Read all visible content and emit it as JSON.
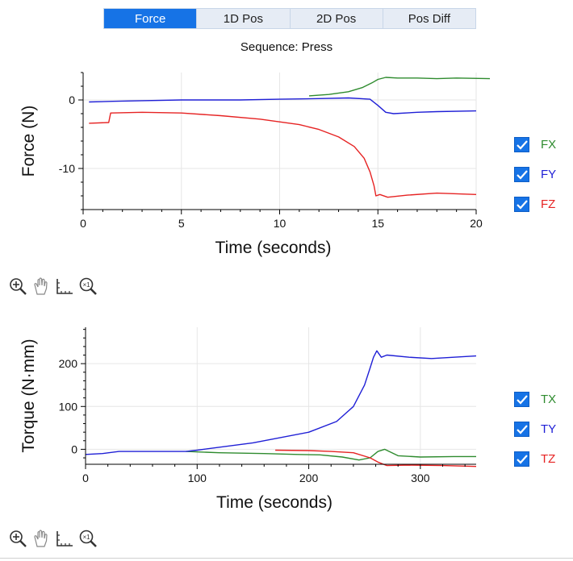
{
  "tabs": [
    {
      "label": "Force",
      "active": true
    },
    {
      "label": "1D Pos",
      "active": false
    },
    {
      "label": "2D Pos",
      "active": false
    },
    {
      "label": "Pos Diff",
      "active": false
    }
  ],
  "sequence": {
    "label": "Sequence: Press"
  },
  "colors": {
    "accent": "#1673e6",
    "x": "#2e8b2e",
    "y": "#1f1fd6",
    "z": "#e62323"
  },
  "toolbar_icons": [
    "zoom-in-icon",
    "pan-hand-icon",
    "ruler-icon",
    "zoom-reset-icon"
  ],
  "chart_data": [
    {
      "type": "line",
      "title": "",
      "xlabel": "Time (seconds)",
      "ylabel": "Force (N)",
      "xlim": [
        0,
        20
      ],
      "ylim": [
        -16,
        4
      ],
      "xticks": [
        0,
        5,
        10,
        15,
        20
      ],
      "yticks": [
        0,
        -10
      ],
      "grid": true,
      "legend_position": "right",
      "series": [
        {
          "name": "FX",
          "color": "#2e8b2e",
          "x": [
            11.5,
            12.5,
            13.5,
            14.2,
            14.7,
            15.0,
            15.4,
            16,
            17,
            18,
            19,
            20.7
          ],
          "y": [
            0.6,
            0.8,
            1.2,
            1.8,
            2.5,
            3.0,
            3.3,
            3.2,
            3.2,
            3.1,
            3.2,
            3.1
          ]
        },
        {
          "name": "FY",
          "color": "#1f1fd6",
          "x": [
            0.3,
            1.5,
            3,
            5,
            8,
            10,
            12,
            13.5,
            14.6,
            15.0,
            15.4,
            15.8,
            17,
            18,
            20
          ],
          "y": [
            -0.3,
            -0.2,
            -0.1,
            0,
            0,
            0.1,
            0.2,
            0.3,
            0.1,
            -0.8,
            -1.8,
            -2.0,
            -1.8,
            -1.7,
            -1.6
          ]
        },
        {
          "name": "FZ",
          "color": "#e62323",
          "x": [
            0.3,
            1.3,
            1.4,
            3,
            5,
            7,
            9,
            11,
            12,
            13,
            13.8,
            14.3,
            14.6,
            14.8,
            14.9,
            15.1,
            15.5,
            16.5,
            18,
            20
          ],
          "y": [
            -3.4,
            -3.3,
            -1.9,
            -1.8,
            -1.9,
            -2.3,
            -2.8,
            -3.6,
            -4.3,
            -5.4,
            -6.8,
            -8.5,
            -10.5,
            -12.5,
            -14.0,
            -13.8,
            -14.2,
            -13.9,
            -13.6,
            -13.8
          ]
        }
      ]
    },
    {
      "type": "line",
      "title": "",
      "xlabel": "Time (seconds)",
      "ylabel": "Torque (N·mm)",
      "xlim": [
        0,
        350
      ],
      "ylim": [
        -35,
        285
      ],
      "xticks": [
        0,
        100,
        200,
        300
      ],
      "yticks": [
        0,
        100,
        200
      ],
      "grid": true,
      "legend_position": "right",
      "series": [
        {
          "name": "TX",
          "color": "#2e8b2e",
          "x": [
            90,
            120,
            160,
            190,
            210,
            230,
            245,
            255,
            262,
            268,
            280,
            300,
            330,
            350
          ],
          "y": [
            -5,
            -8,
            -10,
            -12,
            -13,
            -18,
            -25,
            -20,
            -5,
            0,
            -15,
            -18,
            -17,
            -17
          ]
        },
        {
          "name": "TY",
          "color": "#1f1fd6",
          "x": [
            0,
            15,
            30,
            60,
            90,
            100,
            150,
            200,
            225,
            240,
            250,
            255,
            258,
            261,
            265,
            270,
            290,
            310,
            330,
            350
          ],
          "y": [
            -12,
            -10,
            -5,
            -5,
            -5,
            -2,
            15,
            40,
            65,
            100,
            150,
            190,
            215,
            230,
            215,
            220,
            215,
            212,
            215,
            218
          ]
        },
        {
          "name": "TZ",
          "color": "#e62323",
          "x": [
            170,
            200,
            220,
            240,
            255,
            262,
            270,
            290,
            320,
            350
          ],
          "y": [
            -2,
            -3,
            -5,
            -8,
            -20,
            -30,
            -38,
            -37,
            -38,
            -40
          ]
        }
      ]
    }
  ]
}
